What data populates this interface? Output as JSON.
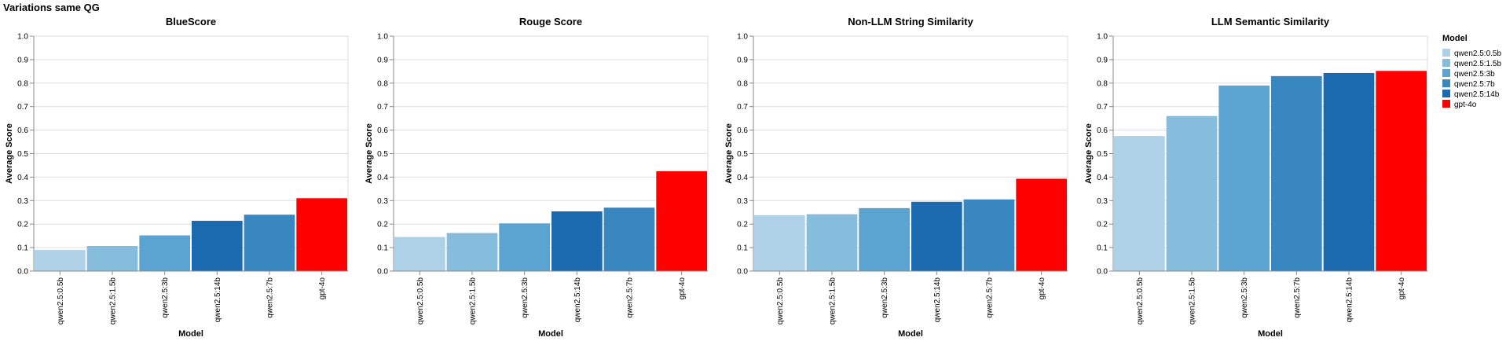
{
  "suptitle": "Variations same QG",
  "legend": {
    "title": "Model",
    "items": [
      {
        "label": "qwen2.5:0.5b",
        "color": "#afd1e7"
      },
      {
        "label": "qwen2.5:1.5b",
        "color": "#86bcdc"
      },
      {
        "label": "qwen2.5:3b",
        "color": "#5ba3d0"
      },
      {
        "label": "qwen2.5:7b",
        "color": "#3887c0"
      },
      {
        "label": "qwen2.5:14b",
        "color": "#1b69ae"
      },
      {
        "label": "gpt-4o",
        "color": "#ff0000"
      }
    ]
  },
  "chart_data": [
    {
      "type": "bar",
      "title": "BlueScore",
      "xlabel": "Model",
      "ylabel": "Average Score",
      "ylim": [
        0,
        1
      ],
      "yticks": [
        "0.0",
        "0.1",
        "0.2",
        "0.3",
        "0.4",
        "0.5",
        "0.6",
        "0.7",
        "0.8",
        "0.9",
        "1.0"
      ],
      "categories": [
        "qwen2.5:0.5b",
        "qwen2.5:1.5b",
        "qwen2.5:3b",
        "qwen2.5:14b",
        "qwen2.5:7b",
        "gpt-4o"
      ],
      "values": [
        0.09,
        0.107,
        0.152,
        0.214,
        0.24,
        0.31
      ]
    },
    {
      "type": "bar",
      "title": "Rouge Score",
      "xlabel": "Model",
      "ylabel": "Average Score",
      "ylim": [
        0,
        1
      ],
      "yticks": [
        "0.0",
        "0.1",
        "0.2",
        "0.3",
        "0.4",
        "0.5",
        "0.6",
        "0.7",
        "0.8",
        "0.9",
        "1.0"
      ],
      "categories": [
        "qwen2.5:0.5b",
        "qwen2.5:1.5b",
        "qwen2.5:3b",
        "qwen2.5:14b",
        "qwen2.5:7b",
        "gpt-4o"
      ],
      "values": [
        0.145,
        0.162,
        0.203,
        0.254,
        0.27,
        0.425
      ]
    },
    {
      "type": "bar",
      "title": "Non-LLM String Similarity",
      "xlabel": "Model",
      "ylabel": "Average Score",
      "ylim": [
        0,
        1
      ],
      "yticks": [
        "0.0",
        "0.1",
        "0.2",
        "0.3",
        "0.4",
        "0.5",
        "0.6",
        "0.7",
        "0.8",
        "0.9",
        "1.0"
      ],
      "categories": [
        "qwen2.5:0.5b",
        "qwen2.5:1.5b",
        "qwen2.5:3b",
        "qwen2.5:14b",
        "qwen2.5:7b",
        "gpt-4o"
      ],
      "values": [
        0.238,
        0.242,
        0.268,
        0.295,
        0.305,
        0.393
      ]
    },
    {
      "type": "bar",
      "title": "LLM Semantic Similarity",
      "xlabel": "Model",
      "ylabel": "Average Score",
      "ylim": [
        0,
        1
      ],
      "yticks": [
        "0.0",
        "0.1",
        "0.2",
        "0.3",
        "0.4",
        "0.5",
        "0.6",
        "0.7",
        "0.8",
        "0.9",
        "1.0"
      ],
      "categories": [
        "qwen2.5:0.5b",
        "qwen2.5:1.5b",
        "qwen2.5:3b",
        "qwen2.5:7b",
        "qwen2.5:14b",
        "gpt-4o"
      ],
      "values": [
        0.575,
        0.66,
        0.79,
        0.83,
        0.843,
        0.852
      ]
    }
  ]
}
